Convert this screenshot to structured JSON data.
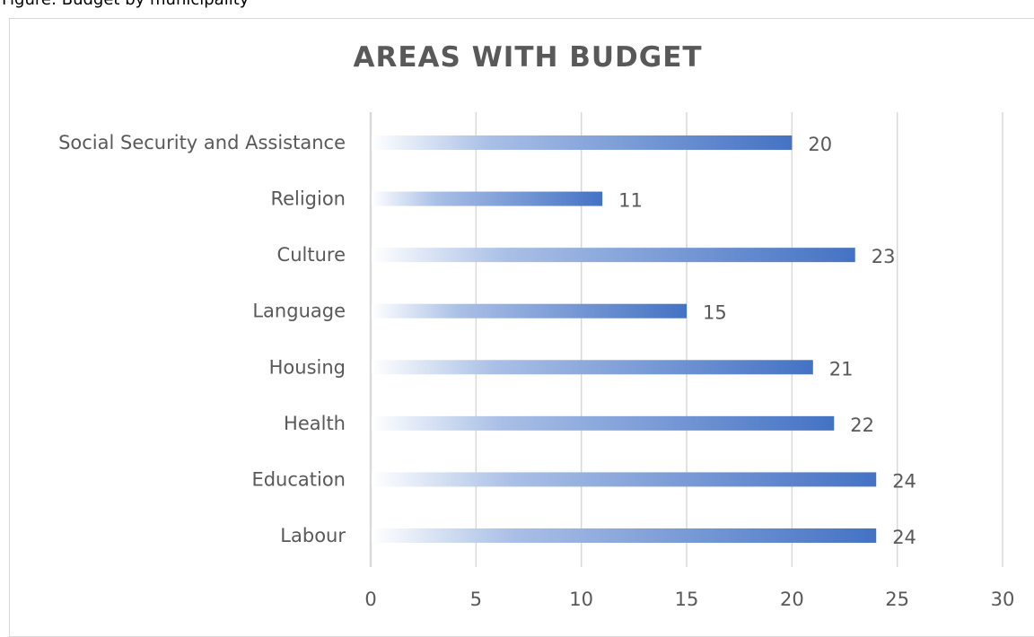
{
  "caption": "Figure: Budget by municipality",
  "chart_data": {
    "type": "bar",
    "orientation": "horizontal",
    "title": "AREAS WITH BUDGET",
    "categories": [
      "Social Security and Assistance",
      "Religion",
      "Culture",
      "Language",
      "Housing",
      "Health",
      "Education",
      "Labour"
    ],
    "values": [
      20,
      11,
      23,
      15,
      21,
      22,
      24,
      24
    ],
    "xlim": [
      0,
      30
    ],
    "x_ticks": [
      0,
      5,
      10,
      15,
      20,
      25,
      30
    ],
    "grid": "vertical",
    "legend": "none",
    "data_labels": true,
    "colors": {
      "bar_end": "#4472c4",
      "bar_start": "#ffffff",
      "grid": "#d9d9d9",
      "text": "#595959"
    }
  }
}
